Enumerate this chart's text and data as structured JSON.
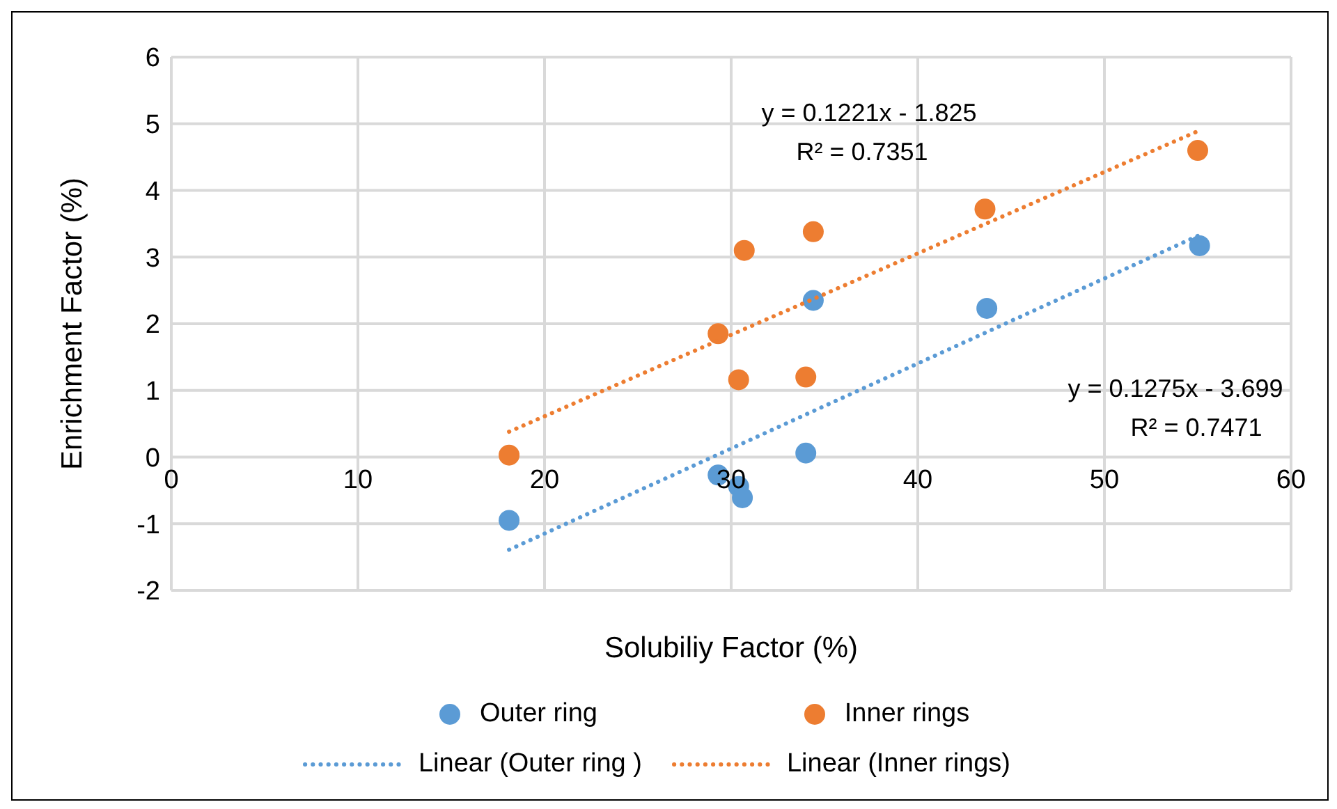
{
  "chart_data": {
    "type": "scatter",
    "xlabel": "Solubiliy Factor (%)",
    "ylabel": "Enrichment Factor (%)",
    "xlim": [
      0,
      60
    ],
    "xticks": [
      0,
      10,
      20,
      30,
      40,
      50,
      60
    ],
    "ylim": [
      -2,
      6
    ],
    "yticks": [
      -2,
      -1,
      0,
      1,
      2,
      3,
      4,
      5,
      6
    ],
    "grid": true,
    "legend": "bottom",
    "marker": "circle",
    "series": [
      {
        "name": "Outer ring",
        "color": "#5b9bd5",
        "x": [
          18.1,
          29.3,
          30.4,
          30.6,
          34.0,
          34.4,
          43.7,
          55.1
        ],
        "values": [
          -0.95,
          -0.27,
          -0.44,
          -0.61,
          0.06,
          2.35,
          2.23,
          3.17
        ]
      },
      {
        "name": "Inner rings",
        "color": "#ed7d31",
        "x": [
          18.1,
          29.3,
          30.4,
          30.7,
          34.0,
          34.4,
          43.6,
          55.0
        ],
        "values": [
          0.03,
          1.85,
          1.16,
          3.1,
          1.2,
          3.38,
          3.72,
          4.6
        ]
      },
      {
        "name": "Linear (Outer ring )",
        "type": "line",
        "marker": "none",
        "line_style": "dotted",
        "color": "#5b9bd5",
        "x": [
          18.1,
          55.1
        ],
        "values": [
          -1.39,
          3.33
        ]
      },
      {
        "name": "Linear (Inner rings)",
        "type": "line",
        "marker": "none",
        "line_style": "dotted",
        "color": "#ed7d31",
        "x": [
          18.1,
          55.1
        ],
        "values": [
          0.38,
          4.9
        ]
      }
    ],
    "annotations": [
      "y = 0.1221x - 1.825",
      "R² = 0.7351",
      "y = 0.1275x - 3.699",
      "R² = 0.7471"
    ]
  }
}
